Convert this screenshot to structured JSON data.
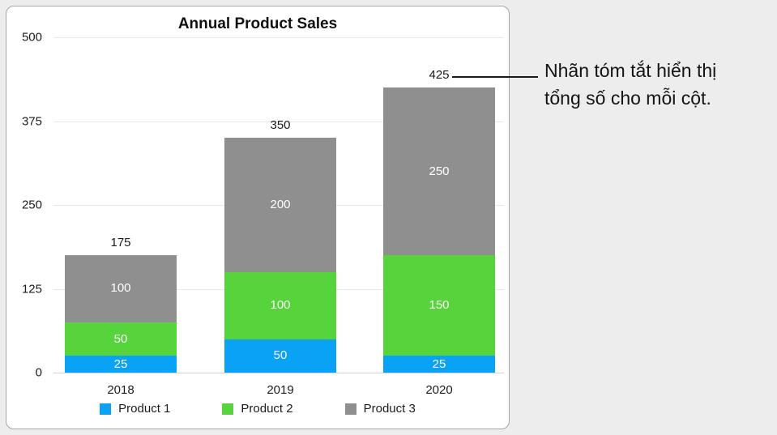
{
  "background_color": "#ededee",
  "panel": {
    "background": "#ffffff",
    "border_color": "#a6a6a6"
  },
  "chart_data": {
    "type": "bar",
    "stacked": true,
    "title": "Annual Product Sales",
    "categories": [
      "2018",
      "2019",
      "2020"
    ],
    "series": [
      {
        "name": "Product 1",
        "color": "#0aa2f5",
        "values": [
          25,
          50,
          25
        ]
      },
      {
        "name": "Product 2",
        "color": "#57d33b",
        "values": [
          50,
          100,
          150
        ]
      },
      {
        "name": "Product 3",
        "color": "#8f8f8f",
        "values": [
          100,
          200,
          250
        ]
      }
    ],
    "totals": [
      175,
      350,
      425
    ],
    "y_ticks": [
      0,
      125,
      250,
      375,
      500
    ],
    "ylim": [
      0,
      500
    ],
    "grid": true,
    "legend_position": "bottom"
  },
  "callout": {
    "text": "Nhãn tóm tắt hiển thị tổng số cho mỗi cột.",
    "lines": [
      "Nhãn tóm tắt hiển thị",
      "tổng số cho mỗi cột."
    ]
  }
}
